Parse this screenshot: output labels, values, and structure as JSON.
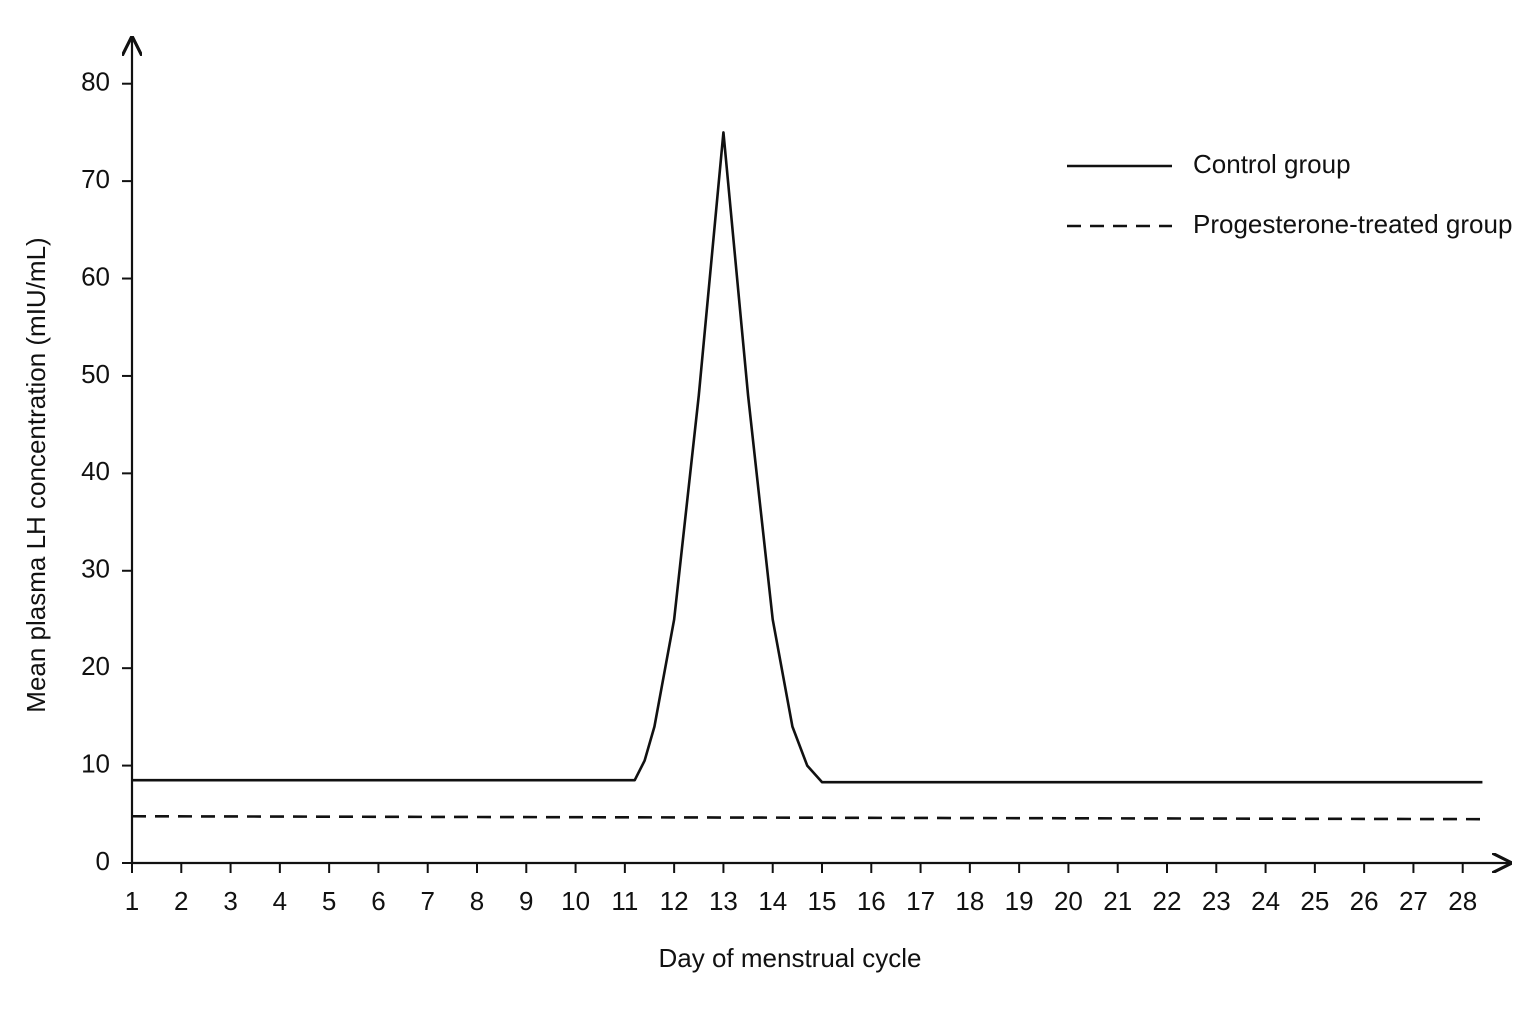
{
  "chart_data": {
    "type": "line",
    "x_label": "Day of menstrual cycle",
    "y_label": "Mean plasma LH concentration (mIU/mL)",
    "xlim": [
      1,
      29
    ],
    "ylim": [
      0,
      85
    ],
    "xticks": [
      1,
      2,
      3,
      4,
      5,
      6,
      7,
      8,
      9,
      10,
      11,
      12,
      13,
      14,
      15,
      16,
      17,
      18,
      19,
      20,
      21,
      22,
      23,
      24,
      25,
      26,
      27,
      28
    ],
    "yticks": [
      0,
      10,
      20,
      30,
      40,
      50,
      60,
      70,
      80
    ],
    "legend": "upper right",
    "series": [
      {
        "name": "Control group",
        "color": "#111111",
        "dash": "solid",
        "x": [
          1,
          11.2,
          11.4,
          11.6,
          12,
          12.5,
          13,
          13.5,
          14,
          14.4,
          14.7,
          15,
          28.4
        ],
        "values": [
          8.5,
          8.5,
          10.5,
          14,
          25,
          48,
          75,
          48,
          25,
          14,
          10,
          8.3,
          8.3
        ]
      },
      {
        "name": "Progesterone-treated group",
        "color": "#111111",
        "dash": "dashed",
        "x": [
          1,
          28.4
        ],
        "values": [
          4.8,
          4.5
        ]
      }
    ]
  }
}
